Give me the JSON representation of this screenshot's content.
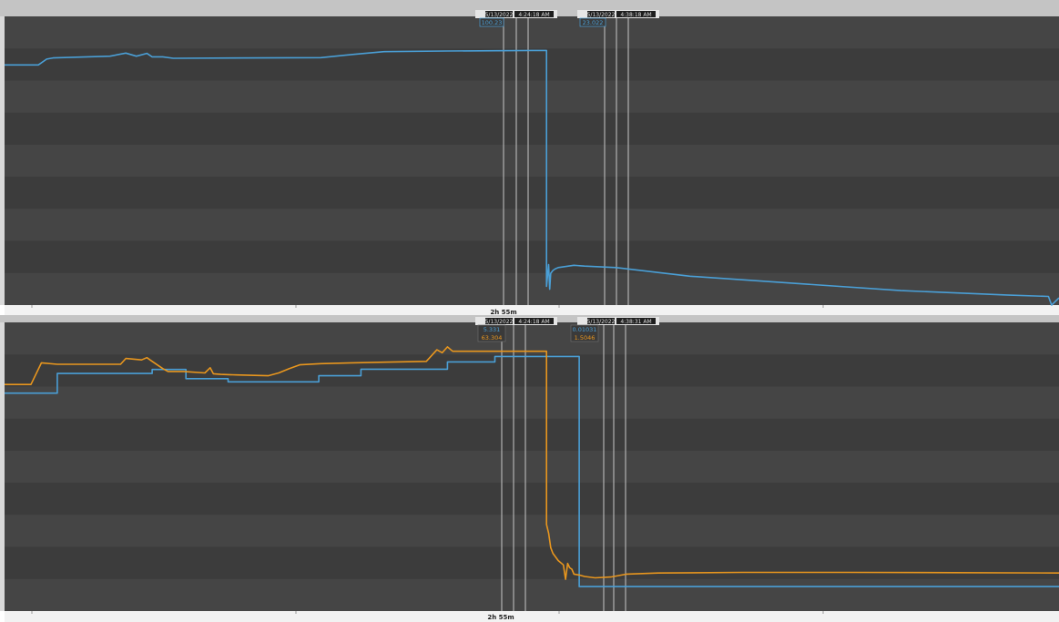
{
  "colors": {
    "blue": "#4a9fd6",
    "orange": "#e8961e",
    "band_light": "#454545",
    "band_dark": "#3c3c3c",
    "header": "#c4c4c4",
    "cursor": "#c8c8c8",
    "flag_bg": "#e6e6e6",
    "flag_box": "#1f1f1f"
  },
  "top_panel": {
    "duration_label": "2h 55m",
    "cursor1": {
      "date": "5/13/2022",
      "time": "4:24:18 AM",
      "value": "100.23"
    },
    "cursor2": {
      "date": "5/13/2022",
      "time": "4:38:18 AM",
      "value": "23.022"
    }
  },
  "bottom_panel": {
    "duration_label": "2h 55m",
    "cursor1": {
      "date": "5/13/2022",
      "time": "4:24:18 AM",
      "value_blue": "5.331",
      "value_orange": "63.304"
    },
    "cursor2": {
      "date": "5/13/2022",
      "time": "4:38:31 AM",
      "value_blue": "0.01031",
      "value_orange": "1.5046"
    }
  },
  "chart_data": [
    {
      "type": "line",
      "xlim": [
        0,
        1
      ],
      "ylim": [
        0,
        1
      ],
      "series": [
        {
          "color": "#4a9fd6",
          "x": [
            0,
            0.032,
            0.04,
            0.046,
            0.1,
            0.115,
            0.125,
            0.135,
            0.14,
            0.15,
            0.16,
            0.3,
            0.33,
            0.36,
            0.42,
            0.5,
            0.514,
            0.514,
            0.516,
            0.517,
            0.518,
            0.52,
            0.522,
            0.525,
            0.54,
            0.55,
            0.58,
            0.65,
            0.75,
            0.85,
            0.95,
            0.99,
            0.993,
            1
          ],
          "y": [
            0.832,
            0.832,
            0.852,
            0.856,
            0.862,
            0.873,
            0.862,
            0.872,
            0.86,
            0.86,
            0.855,
            0.857,
            0.868,
            0.878,
            0.88,
            0.882,
            0.882,
            0.065,
            0.14,
            0.055,
            0.11,
            0.12,
            0.125,
            0.13,
            0.138,
            0.135,
            0.13,
            0.1,
            0.075,
            0.05,
            0.035,
            0.03,
            0.0,
            0.025
          ]
        }
      ]
    },
    {
      "type": "line",
      "xlim": [
        0,
        1
      ],
      "ylim": [
        0,
        1
      ],
      "series": [
        {
          "color": "#4a9fd6",
          "x": [
            0,
            0.05,
            0.05,
            0.14,
            0.14,
            0.172,
            0.172,
            0.212,
            0.212,
            0.298,
            0.298,
            0.338,
            0.338,
            0.42,
            0.42,
            0.465,
            0.465,
            0.545,
            0.545,
            1
          ],
          "y": [
            0.755,
            0.755,
            0.823,
            0.823,
            0.837,
            0.837,
            0.805,
            0.805,
            0.794,
            0.794,
            0.815,
            0.815,
            0.838,
            0.838,
            0.863,
            0.863,
            0.882,
            0.882,
            0.085,
            0.085
          ]
        },
        {
          "color": "#e8961e",
          "x": [
            0,
            0.025,
            0.035,
            0.05,
            0.08,
            0.11,
            0.115,
            0.13,
            0.135,
            0.14,
            0.15,
            0.155,
            0.17,
            0.19,
            0.195,
            0.198,
            0.205,
            0.22,
            0.25,
            0.26,
            0.27,
            0.28,
            0.3,
            0.33,
            0.36,
            0.4,
            0.41,
            0.415,
            0.42,
            0.425,
            0.5,
            0.514,
            0.514,
            0.516,
            0.518,
            0.52,
            0.525,
            0.53,
            0.532,
            0.534,
            0.536,
            0.538,
            0.54,
            0.545,
            0.55,
            0.56,
            0.575,
            0.59,
            0.62,
            0.7,
            0.8,
            0.9,
            1.0
          ],
          "y": [
            0.785,
            0.785,
            0.86,
            0.855,
            0.855,
            0.855,
            0.875,
            0.87,
            0.878,
            0.865,
            0.84,
            0.83,
            0.83,
            0.825,
            0.843,
            0.822,
            0.82,
            0.818,
            0.815,
            0.825,
            0.84,
            0.853,
            0.857,
            0.86,
            0.862,
            0.865,
            0.905,
            0.895,
            0.915,
            0.9,
            0.9,
            0.9,
            0.3,
            0.27,
            0.22,
            0.2,
            0.175,
            0.16,
            0.11,
            0.165,
            0.15,
            0.145,
            0.128,
            0.125,
            0.12,
            0.115,
            0.118,
            0.128,
            0.132,
            0.134,
            0.134,
            0.133,
            0.132
          ]
        }
      ]
    }
  ]
}
